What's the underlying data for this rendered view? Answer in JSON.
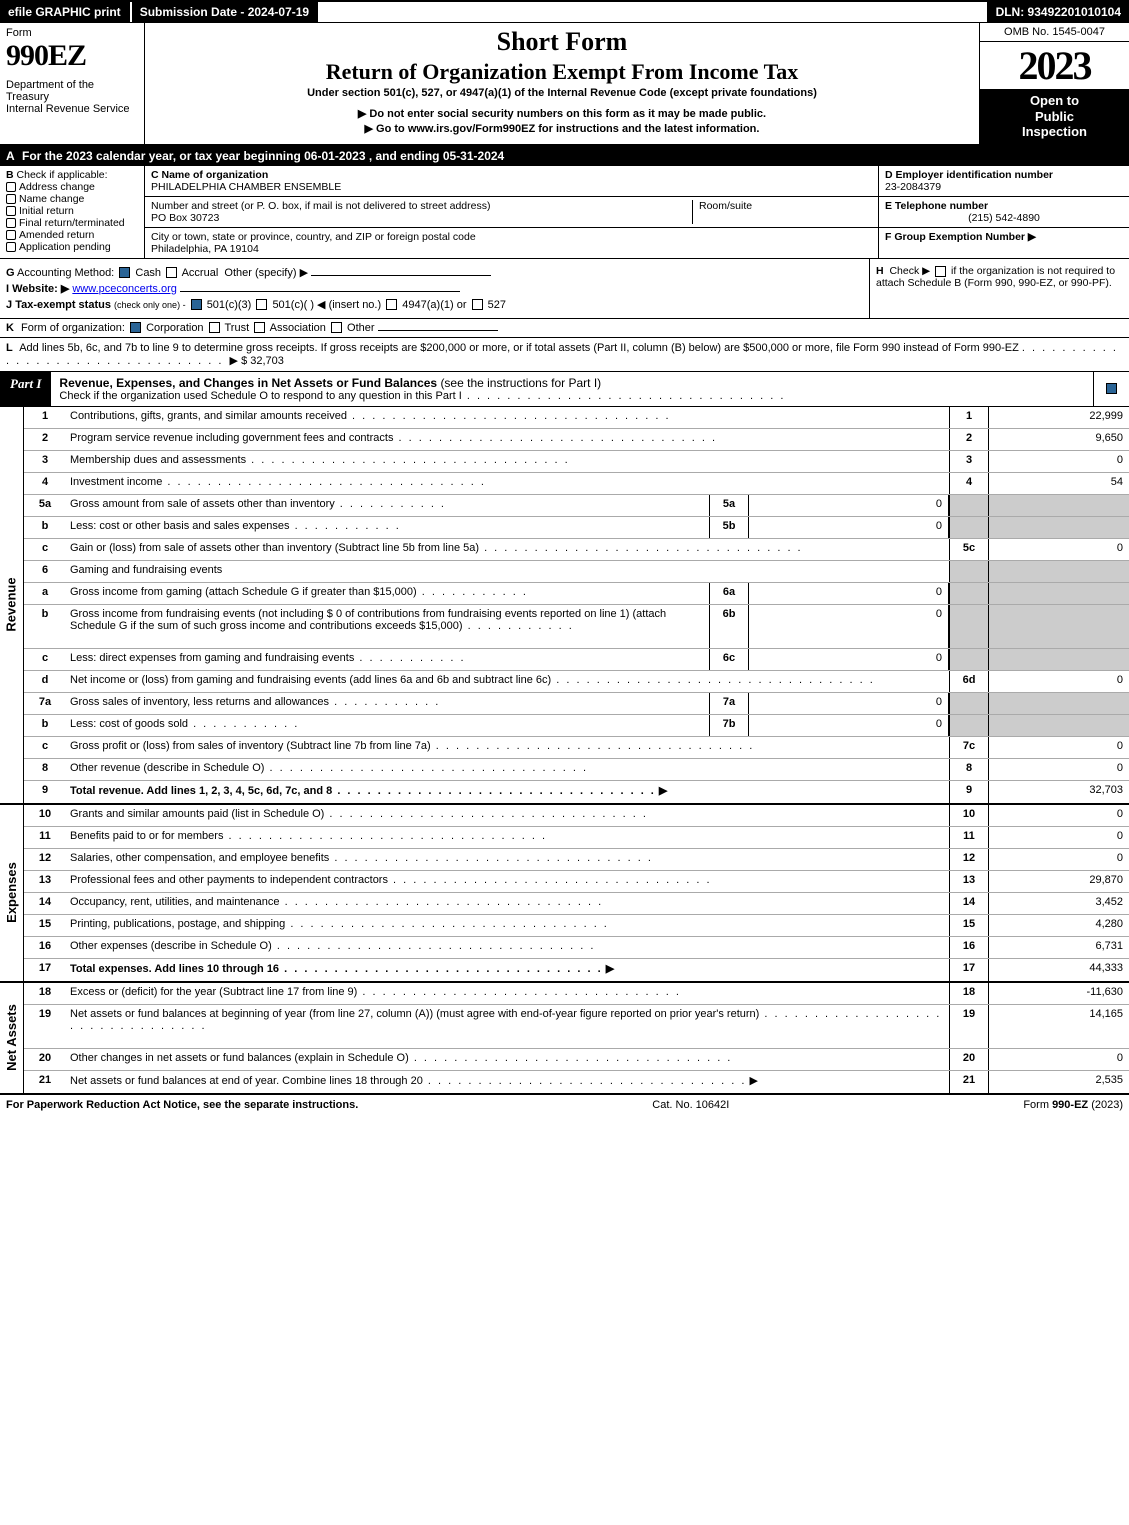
{
  "topbar": {
    "efile": "efile GRAPHIC print",
    "submission": "Submission Date - 2024-07-19",
    "dln": "DLN: 93492201010104"
  },
  "header": {
    "form_word": "Form",
    "form_no": "990EZ",
    "dept": "Department of the Treasury\nInternal Revenue Service",
    "short_form": "Short Form",
    "return_title": "Return of Organization Exempt From Income Tax",
    "subtitle": "Under section 501(c), 527, or 4947(a)(1) of the Internal Revenue Code (except private foundations)",
    "warn": "▶ Do not enter social security numbers on this form as it may be made public.",
    "goto": "▶ Go to www.irs.gov/Form990EZ for instructions and the latest information.",
    "omb": "OMB No. 1545-0047",
    "year": "2023",
    "openbox": "Open to\nPublic\nInspection"
  },
  "row_a": {
    "lead": "A",
    "text": "For the 2023 calendar year, or tax year beginning 06-01-2023 , and ending 05-31-2024"
  },
  "col_b": {
    "lead": "B",
    "label": "Check if applicable:",
    "items": [
      "Address change",
      "Name change",
      "Initial return",
      "Final return/terminated",
      "Amended return",
      "Application pending"
    ]
  },
  "col_c": {
    "name_label": "C Name of organization",
    "name_val": "PHILADELPHIA CHAMBER ENSEMBLE",
    "street_label": "Number and street (or P. O. box, if mail is not delivered to street address)",
    "roomsuite_label": "Room/suite",
    "street_val": "PO Box 30723",
    "city_label": "City or town, state or province, country, and ZIP or foreign postal code",
    "city_val": "Philadelphia, PA  19104"
  },
  "col_de": {
    "d_label": "D Employer identification number",
    "d_val": "23-2084379",
    "e_label": "E Telephone number",
    "e_val": "(215) 542-4890",
    "f_label": "F Group Exemption Number  ▶"
  },
  "row_g": {
    "lead": "G",
    "label": "Accounting Method:",
    "cash": "Cash",
    "accrual": "Accrual",
    "other": "Other (specify) ▶"
  },
  "row_i": {
    "lead": "I",
    "label": "Website: ▶",
    "val": "www.pceconcerts.org"
  },
  "row_j": {
    "lead": "J",
    "label": "Tax-exempt status",
    "note": "(check only one) -",
    "opt1": "501(c)(3)",
    "opt2": "501(c)(  ) ◀ (insert no.)",
    "opt3": "4947(a)(1) or",
    "opt4": "527"
  },
  "row_h": {
    "lead": "H",
    "text1": "Check ▶",
    "text2": "if the organization is not required to attach Schedule B (Form 990, 990-EZ, or 990-PF)."
  },
  "row_k": {
    "lead": "K",
    "label": "Form of organization:",
    "opts": [
      "Corporation",
      "Trust",
      "Association",
      "Other"
    ]
  },
  "row_l": {
    "lead": "L",
    "text": "Add lines 5b, 6c, and 7b to line 9 to determine gross receipts. If gross receipts are $200,000 or more, or if total assets (Part II, column (B) below) are $500,000 or more, file Form 990 instead of Form 990-EZ",
    "amount_label": "▶ $",
    "amount": "32,703"
  },
  "part1": {
    "tag": "Part I",
    "title": "Revenue, Expenses, and Changes in Net Assets or Fund Balances",
    "note": "(see the instructions for Part I)",
    "sub": "Check if the organization used Schedule O to respond to any question in this Part I"
  },
  "sidetabs": {
    "revenue": "Revenue",
    "expenses": "Expenses",
    "netassets": "Net Assets"
  },
  "revenue_lines": [
    {
      "n": "1",
      "t": "Contributions, gifts, grants, and similar amounts received",
      "rn": "1",
      "rv": "22,999"
    },
    {
      "n": "2",
      "t": "Program service revenue including government fees and contracts",
      "rn": "2",
      "rv": "9,650"
    },
    {
      "n": "3",
      "t": "Membership dues and assessments",
      "rn": "3",
      "rv": "0"
    },
    {
      "n": "4",
      "t": "Investment income",
      "rn": "4",
      "rv": "54"
    },
    {
      "n": "5a",
      "t": "Gross amount from sale of assets other than inventory",
      "il": "5a",
      "iv": "0",
      "shade": true
    },
    {
      "n": "b",
      "t": "Less: cost or other basis and sales expenses",
      "il": "5b",
      "iv": "0",
      "shade": true
    },
    {
      "n": "c",
      "t": "Gain or (loss) from sale of assets other than inventory (Subtract line 5b from line 5a)",
      "rn": "5c",
      "rv": "0"
    },
    {
      "n": "6",
      "t": "Gaming and fundraising events",
      "shade": true,
      "nobot": true
    },
    {
      "n": "a",
      "t": "Gross income from gaming (attach Schedule G if greater than $15,000)",
      "il": "6a",
      "iv": "0",
      "shade": true
    },
    {
      "n": "b",
      "t": "Gross income from fundraising events (not including $ 0            of contributions from fundraising events reported on line 1) (attach Schedule G if the sum of such gross income and contributions exceeds $15,000)",
      "il": "6b",
      "iv": "0",
      "shade": true,
      "tall": true
    },
    {
      "n": "c",
      "t": "Less: direct expenses from gaming and fundraising events",
      "il": "6c",
      "iv": "0",
      "shade": true
    },
    {
      "n": "d",
      "t": "Net income or (loss) from gaming and fundraising events (add lines 6a and 6b and subtract line 6c)",
      "rn": "6d",
      "rv": "0"
    },
    {
      "n": "7a",
      "t": "Gross sales of inventory, less returns and allowances",
      "il": "7a",
      "iv": "0",
      "shade": true
    },
    {
      "n": "b",
      "t": "Less: cost of goods sold",
      "il": "7b",
      "iv": "0",
      "shade": true
    },
    {
      "n": "c",
      "t": "Gross profit or (loss) from sales of inventory (Subtract line 7b from line 7a)",
      "rn": "7c",
      "rv": "0"
    },
    {
      "n": "8",
      "t": "Other revenue (describe in Schedule O)",
      "rn": "8",
      "rv": "0"
    },
    {
      "n": "9",
      "t": "Total revenue. Add lines 1, 2, 3, 4, 5c, 6d, 7c, and 8",
      "rn": "9",
      "rv": "32,703",
      "bold": true,
      "arrow": true
    }
  ],
  "expense_lines": [
    {
      "n": "10",
      "t": "Grants and similar amounts paid (list in Schedule O)",
      "rn": "10",
      "rv": "0"
    },
    {
      "n": "11",
      "t": "Benefits paid to or for members",
      "rn": "11",
      "rv": "0"
    },
    {
      "n": "12",
      "t": "Salaries, other compensation, and employee benefits",
      "rn": "12",
      "rv": "0"
    },
    {
      "n": "13",
      "t": "Professional fees and other payments to independent contractors",
      "rn": "13",
      "rv": "29,870"
    },
    {
      "n": "14",
      "t": "Occupancy, rent, utilities, and maintenance",
      "rn": "14",
      "rv": "3,452"
    },
    {
      "n": "15",
      "t": "Printing, publications, postage, and shipping",
      "rn": "15",
      "rv": "4,280"
    },
    {
      "n": "16",
      "t": "Other expenses (describe in Schedule O)",
      "rn": "16",
      "rv": "6,731"
    },
    {
      "n": "17",
      "t": "Total expenses. Add lines 10 through 16",
      "rn": "17",
      "rv": "44,333",
      "bold": true,
      "arrow": true
    }
  ],
  "netasset_lines": [
    {
      "n": "18",
      "t": "Excess or (deficit) for the year (Subtract line 17 from line 9)",
      "rn": "18",
      "rv": "-11,630"
    },
    {
      "n": "19",
      "t": "Net assets or fund balances at beginning of year (from line 27, column (A)) (must agree with end-of-year figure reported on prior year's return)",
      "rn": "19",
      "rv": "14,165",
      "tall": true
    },
    {
      "n": "20",
      "t": "Other changes in net assets or fund balances (explain in Schedule O)",
      "rn": "20",
      "rv": "0"
    },
    {
      "n": "21",
      "t": "Net assets or fund balances at end of year. Combine lines 18 through 20",
      "rn": "21",
      "rv": "2,535",
      "arrow": true
    }
  ],
  "footer": {
    "left": "For Paperwork Reduction Act Notice, see the separate instructions.",
    "mid": "Cat. No. 10642I",
    "right_pre": "Form ",
    "right_form": "990-EZ",
    "right_post": " (2023)"
  }
}
